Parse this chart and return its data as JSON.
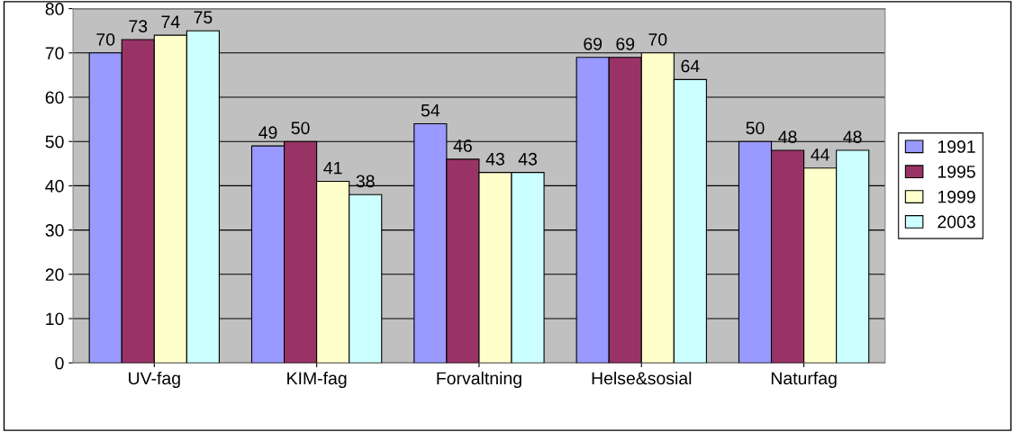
{
  "chart_data": {
    "type": "bar",
    "categories": [
      "UV-fag",
      "KIM-fag",
      "Forvaltning",
      "Helse&sosial",
      "Naturfag"
    ],
    "series": [
      {
        "name": "1991",
        "color": "#9999ff",
        "values": [
          70,
          49,
          54,
          69,
          50
        ]
      },
      {
        "name": "1995",
        "color": "#993366",
        "values": [
          73,
          50,
          46,
          69,
          48
        ]
      },
      {
        "name": "1999",
        "color": "#ffffcc",
        "values": [
          74,
          41,
          43,
          70,
          44
        ]
      },
      {
        "name": "2003",
        "color": "#ccffff",
        "values": [
          75,
          38,
          43,
          64,
          48
        ]
      }
    ],
    "ylim": [
      0,
      80
    ],
    "yticks": [
      0,
      10,
      20,
      30,
      40,
      50,
      60,
      70,
      80
    ],
    "grid": "y",
    "legend": "right",
    "data_labels": true
  }
}
